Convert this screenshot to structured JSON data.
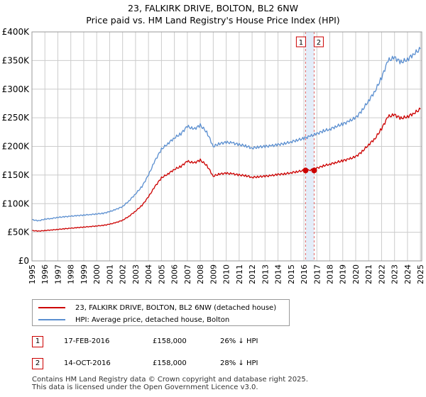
{
  "title_line1": "23, FALKIRK DRIVE, BOLTON, BL2 6NW",
  "title_line2": "Price paid vs. HM Land Registry's House Price Index (HPI)",
  "colors": {
    "property": "#cc0000",
    "hpi": "#5b8fd0",
    "band": "#dde8f8",
    "marker_line": "#e06666",
    "grid": "#cccccc"
  },
  "legend": {
    "property_label": "23, FALKIRK DRIVE, BOLTON, BL2 6NW (detached house)",
    "hpi_label": "HPI: Average price, detached house, Bolton"
  },
  "transactions": [
    {
      "num": "1",
      "date": "17-FEB-2016",
      "price": "£158,000",
      "hpi_diff": "26% ↓ HPI"
    },
    {
      "num": "2",
      "date": "14-OCT-2016",
      "price": "£158,000",
      "hpi_diff": "28% ↓ HPI"
    }
  ],
  "footer": {
    "line1": "Contains HM Land Registry data © Crown copyright and database right 2025.",
    "line2": "This data is licensed under the Open Government Licence v3.0."
  },
  "chart_data": {
    "type": "line",
    "title": "23, FALKIRK DRIVE, BOLTON, BL2 6NW — Price paid vs. HM Land Registry's House Price Index (HPI)",
    "xlim": [
      1995,
      2025.1
    ],
    "ylim": [
      0,
      400000
    ],
    "x_ticks": [
      1995,
      1996,
      1997,
      1998,
      1999,
      2000,
      2001,
      2002,
      2003,
      2004,
      2005,
      2006,
      2007,
      2008,
      2009,
      2010,
      2011,
      2012,
      2013,
      2014,
      2015,
      2016,
      2017,
      2018,
      2019,
      2020,
      2021,
      2022,
      2023,
      2024,
      2025
    ],
    "y_ticks": [
      {
        "value": 0,
        "label": "£0"
      },
      {
        "value": 50000,
        "label": "£50K"
      },
      {
        "value": 100000,
        "label": "£100K"
      },
      {
        "value": 150000,
        "label": "£150K"
      },
      {
        "value": 200000,
        "label": "£200K"
      },
      {
        "value": 250000,
        "label": "£250K"
      },
      {
        "value": 300000,
        "label": "£300K"
      },
      {
        "value": 350000,
        "label": "£350K"
      },
      {
        "value": 400000,
        "label": "£400K"
      }
    ],
    "grid": true,
    "series": [
      {
        "name": "HPI: Average price, detached house, Bolton",
        "x": [
          1995,
          1995.5,
          1996,
          1996.5,
          1997,
          1997.5,
          1998,
          1998.5,
          1999,
          1999.5,
          2000,
          2000.5,
          2001,
          2001.5,
          2002,
          2002.5,
          2003,
          2003.5,
          2004,
          2004.5,
          2005,
          2005.5,
          2006,
          2006.5,
          2007,
          2007.5,
          2008,
          2008.5,
          2009,
          2009.5,
          2010,
          2010.5,
          2011,
          2011.5,
          2012,
          2012.5,
          2013,
          2013.5,
          2014,
          2014.5,
          2015,
          2015.5,
          2016,
          2016.5,
          2017,
          2017.5,
          2018,
          2018.5,
          2019,
          2019.5,
          2020,
          2020.5,
          2021,
          2021.5,
          2022,
          2022.5,
          2023,
          2023.5,
          2024,
          2024.5,
          2025
        ],
        "values": [
          72000,
          70000,
          73000,
          74000,
          76000,
          77000,
          78000,
          79000,
          80000,
          81000,
          82000,
          83000,
          86000,
          90000,
          95000,
          105000,
          117000,
          130000,
          150000,
          175000,
          195000,
          205000,
          215000,
          222000,
          235000,
          230000,
          237000,
          225000,
          200000,
          205000,
          207000,
          206000,
          203000,
          201000,
          197000,
          199000,
          200000,
          201000,
          203000,
          205000,
          208000,
          211000,
          214000,
          218000,
          222000,
          227000,
          230000,
          235000,
          239000,
          244000,
          250000,
          263000,
          280000,
          297000,
          320000,
          350000,
          355000,
          347000,
          352000,
          362000,
          370000
        ]
      },
      {
        "name": "23, FALKIRK DRIVE, BOLTON, BL2 6NW (detached house)",
        "x": [
          1995,
          1995.5,
          1996,
          1996.5,
          1997,
          1997.5,
          1998,
          1998.5,
          1999,
          1999.5,
          2000,
          2000.5,
          2001,
          2001.5,
          2002,
          2002.5,
          2003,
          2003.5,
          2004,
          2004.5,
          2005,
          2005.5,
          2006,
          2006.5,
          2007,
          2007.5,
          2008,
          2008.5,
          2009,
          2009.5,
          2010,
          2010.5,
          2011,
          2011.5,
          2012,
          2012.5,
          2013,
          2013.5,
          2014,
          2014.5,
          2015,
          2015.5,
          2016,
          2016.5,
          2017,
          2017.5,
          2018,
          2018.5,
          2019,
          2019.5,
          2020,
          2020.5,
          2021,
          2021.5,
          2022,
          2022.5,
          2023,
          2023.5,
          2024,
          2024.5,
          2025
        ],
        "values": [
          53000,
          52000,
          53000,
          54000,
          55000,
          56000,
          57000,
          58000,
          59000,
          60000,
          61000,
          62000,
          64000,
          67000,
          71000,
          78000,
          87000,
          97000,
          112000,
          130000,
          145000,
          152000,
          160000,
          165000,
          174000,
          171000,
          176000,
          167000,
          148000,
          152000,
          153000,
          152000,
          150000,
          149000,
          146000,
          147000,
          148000,
          149000,
          151000,
          152000,
          154000,
          156000,
          158000,
          158000,
          162000,
          166000,
          169000,
          172000,
          175000,
          178000,
          182000,
          191000,
          203000,
          214000,
          231000,
          252000,
          255000,
          249000,
          252000,
          258000,
          265000
        ]
      }
    ],
    "sales": [
      {
        "label": "1",
        "x": 2016.13,
        "price": 158000
      },
      {
        "label": "2",
        "x": 2016.79,
        "price": 158000
      }
    ]
  }
}
